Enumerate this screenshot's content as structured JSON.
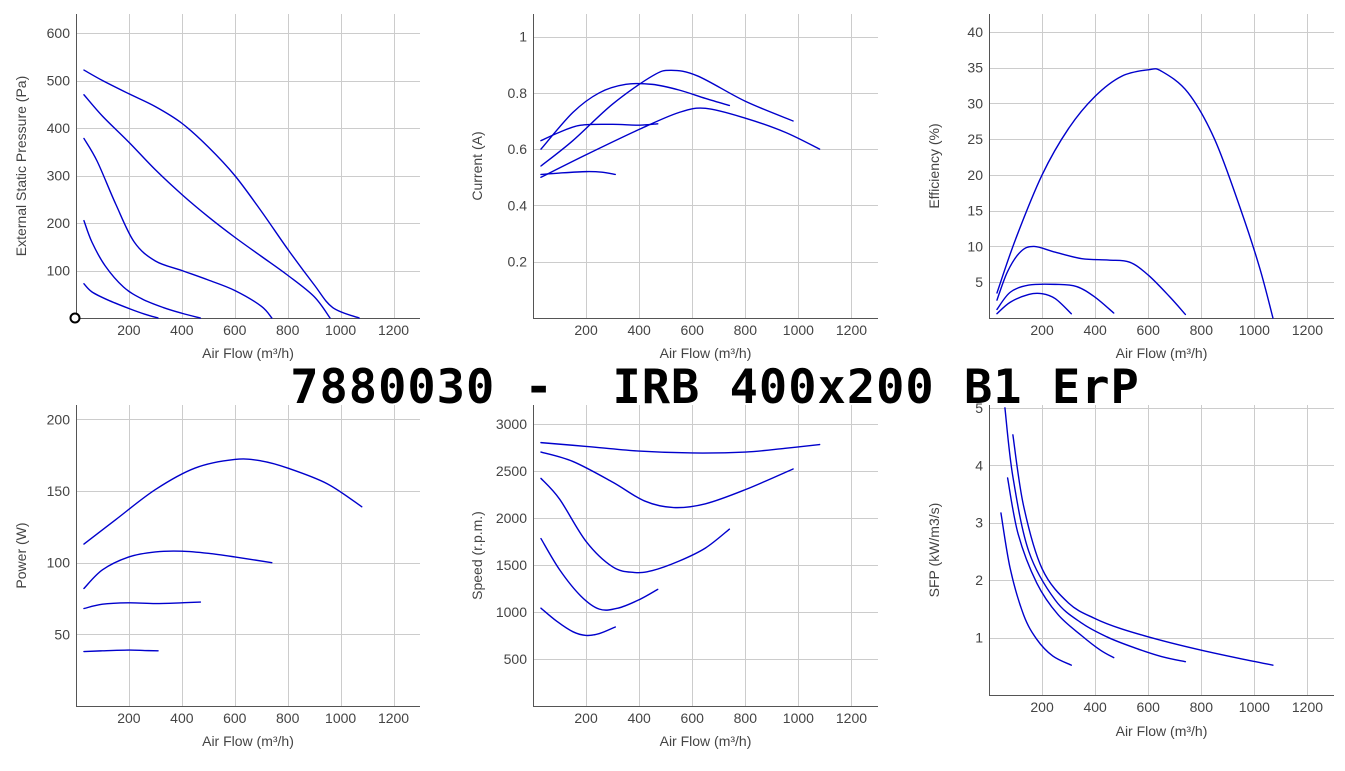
{
  "title": "7880030 -  IRB 400x200 B1 ErP",
  "colors": {
    "curve": "#0000cc",
    "grid": "#cccccc",
    "axis": "#555555",
    "marker": "#000000"
  },
  "chart_data": [
    {
      "id": "pressure",
      "type": "line",
      "xlabel": "Air Flow (m³/h)",
      "ylabel": "External Static Pressure (Pa)",
      "xticks": [
        200,
        400,
        600,
        800,
        1000,
        1200
      ],
      "yticks": [
        100,
        200,
        300,
        400,
        500,
        600
      ],
      "xlim": [
        0,
        1300
      ],
      "ylim": [
        0,
        640
      ],
      "grid": true,
      "marker_point": [
        0,
        0
      ],
      "series": [
        {
          "points": [
            [
              30,
              522
            ],
            [
              100,
              500
            ],
            [
              200,
              472
            ],
            [
              300,
              445
            ],
            [
              400,
              410
            ],
            [
              500,
              360
            ],
            [
              600,
              300
            ],
            [
              700,
              225
            ],
            [
              800,
              145
            ],
            [
              900,
              70
            ],
            [
              970,
              22
            ],
            [
              1070,
              0
            ]
          ]
        },
        {
          "points": [
            [
              30,
              470
            ],
            [
              100,
              425
            ],
            [
              200,
              370
            ],
            [
              300,
              312
            ],
            [
              400,
              260
            ],
            [
              500,
              213
            ],
            [
              600,
              170
            ],
            [
              700,
              130
            ],
            [
              800,
              90
            ],
            [
              900,
              45
            ],
            [
              960,
              0
            ]
          ]
        },
        {
          "points": [
            [
              30,
              378
            ],
            [
              80,
              330
            ],
            [
              150,
              240
            ],
            [
              220,
              160
            ],
            [
              300,
              120
            ],
            [
              400,
              100
            ],
            [
              500,
              80
            ],
            [
              600,
              58
            ],
            [
              700,
              25
            ],
            [
              740,
              0
            ]
          ]
        },
        {
          "points": [
            [
              30,
              205
            ],
            [
              60,
              160
            ],
            [
              110,
              110
            ],
            [
              180,
              65
            ],
            [
              250,
              40
            ],
            [
              330,
              22
            ],
            [
              400,
              10
            ],
            [
              470,
              0
            ]
          ]
        },
        {
          "points": [
            [
              30,
              72
            ],
            [
              60,
              55
            ],
            [
              120,
              38
            ],
            [
              200,
              20
            ],
            [
              260,
              8
            ],
            [
              310,
              0
            ]
          ]
        }
      ]
    },
    {
      "id": "current",
      "type": "line",
      "xlabel": "Air Flow (m³/h)",
      "ylabel": "Current (A)",
      "xticks": [
        200,
        400,
        600,
        800,
        1000,
        1200
      ],
      "yticks": [
        0.2,
        0.4,
        0.6,
        0.8,
        1
      ],
      "xlim": [
        0,
        1300
      ],
      "ylim": [
        0,
        1.08
      ],
      "grid": true,
      "series": [
        {
          "points": [
            [
              30,
              0.5
            ],
            [
              200,
              0.58
            ],
            [
              400,
              0.67
            ],
            [
              550,
              0.73
            ],
            [
              650,
              0.745
            ],
            [
              800,
              0.71
            ],
            [
              950,
              0.66
            ],
            [
              1080,
              0.6
            ]
          ]
        },
        {
          "points": [
            [
              30,
              0.54
            ],
            [
              150,
              0.63
            ],
            [
              300,
              0.76
            ],
            [
              450,
              0.86
            ],
            [
              520,
              0.88
            ],
            [
              620,
              0.86
            ],
            [
              800,
              0.77
            ],
            [
              980,
              0.7
            ]
          ]
        },
        {
          "points": [
            [
              30,
              0.6
            ],
            [
              150,
              0.73
            ],
            [
              250,
              0.8
            ],
            [
              350,
              0.83
            ],
            [
              450,
              0.83
            ],
            [
              550,
              0.81
            ],
            [
              650,
              0.78
            ],
            [
              740,
              0.755
            ]
          ]
        },
        {
          "points": [
            [
              30,
              0.63
            ],
            [
              100,
              0.66
            ],
            [
              180,
              0.685
            ],
            [
              300,
              0.688
            ],
            [
              400,
              0.685
            ],
            [
              470,
              0.69
            ]
          ]
        },
        {
          "points": [
            [
              30,
              0.51
            ],
            [
              100,
              0.515
            ],
            [
              200,
              0.52
            ],
            [
              260,
              0.518
            ],
            [
              310,
              0.51
            ]
          ]
        }
      ]
    },
    {
      "id": "efficiency",
      "type": "line",
      "xlabel": "Air Flow (m³/h)",
      "ylabel": "Efficiency (%)",
      "xticks": [
        200,
        400,
        600,
        800,
        1000,
        1200
      ],
      "yticks": [
        5,
        10,
        15,
        20,
        25,
        30,
        35,
        40
      ],
      "xlim": [
        0,
        1300
      ],
      "ylim": [
        0,
        42.5
      ],
      "grid": true,
      "series": [
        {
          "points": [
            [
              30,
              3.5
            ],
            [
              100,
              11
            ],
            [
              200,
              20
            ],
            [
              300,
              26.5
            ],
            [
              400,
              31
            ],
            [
              500,
              33.8
            ],
            [
              600,
              34.7
            ],
            [
              650,
              34.5
            ],
            [
              750,
              31.5
            ],
            [
              850,
              25
            ],
            [
              950,
              15
            ],
            [
              1020,
              7
            ],
            [
              1070,
              0
            ]
          ]
        },
        {
          "points": [
            [
              30,
              2.5
            ],
            [
              70,
              6.5
            ],
            [
              120,
              9.3
            ],
            [
              170,
              10
            ],
            [
              250,
              9.2
            ],
            [
              350,
              8.3
            ],
            [
              450,
              8.1
            ],
            [
              530,
              7.8
            ],
            [
              600,
              6
            ],
            [
              680,
              3
            ],
            [
              740,
              0.5
            ]
          ]
        },
        {
          "points": [
            [
              30,
              1.2
            ],
            [
              80,
              3.6
            ],
            [
              150,
              4.6
            ],
            [
              250,
              4.7
            ],
            [
              330,
              4.4
            ],
            [
              400,
              2.9
            ],
            [
              470,
              0.7
            ]
          ]
        },
        {
          "points": [
            [
              30,
              0.6
            ],
            [
              80,
              2.2
            ],
            [
              150,
              3.3
            ],
            [
              200,
              3.4
            ],
            [
              250,
              2.7
            ],
            [
              310,
              0.6
            ]
          ]
        }
      ]
    },
    {
      "id": "power",
      "type": "line",
      "xlabel": "Air Flow (m³/h)",
      "ylabel": "Power (W)",
      "xticks": [
        200,
        400,
        600,
        800,
        1000,
        1200
      ],
      "yticks": [
        50,
        100,
        150,
        200
      ],
      "xlim": [
        0,
        1300
      ],
      "ylim": [
        0,
        210
      ],
      "grid": true,
      "series": [
        {
          "points": [
            [
              30,
              113
            ],
            [
              150,
              130
            ],
            [
              300,
              151
            ],
            [
              450,
              166
            ],
            [
              600,
              172
            ],
            [
              700,
              171
            ],
            [
              800,
              166
            ],
            [
              950,
              155
            ],
            [
              1080,
              139
            ]
          ]
        },
        {
          "points": [
            [
              30,
              82
            ],
            [
              100,
              95
            ],
            [
              200,
              104
            ],
            [
              300,
              107.5
            ],
            [
              400,
              108
            ],
            [
              500,
              106.5
            ],
            [
              600,
              104
            ],
            [
              740,
              100
            ]
          ]
        },
        {
          "points": [
            [
              30,
              68
            ],
            [
              100,
              71
            ],
            [
              200,
              72
            ],
            [
              300,
              71.5
            ],
            [
              400,
              72
            ],
            [
              470,
              72.5
            ]
          ]
        },
        {
          "points": [
            [
              30,
              38
            ],
            [
              100,
              38.5
            ],
            [
              200,
              39
            ],
            [
              260,
              38.7
            ],
            [
              310,
              38.5
            ]
          ]
        }
      ]
    },
    {
      "id": "speed",
      "type": "line",
      "xlabel": "Air Flow (m³/h)",
      "ylabel": "Speed (r.p.m.)",
      "xticks": [
        200,
        400,
        600,
        800,
        1000,
        1200
      ],
      "yticks": [
        500,
        1000,
        1500,
        2000,
        2500,
        3000
      ],
      "xlim": [
        0,
        1300
      ],
      "ylim": [
        0,
        3200
      ],
      "grid": true,
      "series": [
        {
          "points": [
            [
              30,
              2800
            ],
            [
              200,
              2760
            ],
            [
              400,
              2710
            ],
            [
              600,
              2690
            ],
            [
              800,
              2700
            ],
            [
              950,
              2740
            ],
            [
              1080,
              2780
            ]
          ]
        },
        {
          "points": [
            [
              30,
              2700
            ],
            [
              150,
              2600
            ],
            [
              300,
              2380
            ],
            [
              420,
              2180
            ],
            [
              530,
              2110
            ],
            [
              650,
              2150
            ],
            [
              800,
              2300
            ],
            [
              980,
              2520
            ]
          ]
        },
        {
          "points": [
            [
              30,
              2420
            ],
            [
              100,
              2200
            ],
            [
              200,
              1750
            ],
            [
              300,
              1480
            ],
            [
              380,
              1420
            ],
            [
              450,
              1440
            ],
            [
              550,
              1540
            ],
            [
              650,
              1680
            ],
            [
              740,
              1880
            ]
          ]
        },
        {
          "points": [
            [
              30,
              1780
            ],
            [
              100,
              1450
            ],
            [
              180,
              1170
            ],
            [
              250,
              1030
            ],
            [
              320,
              1040
            ],
            [
              400,
              1130
            ],
            [
              470,
              1240
            ]
          ]
        },
        {
          "points": [
            [
              30,
              1040
            ],
            [
              90,
              900
            ],
            [
              150,
              790
            ],
            [
              200,
              750
            ],
            [
              250,
              770
            ],
            [
              310,
              840
            ]
          ]
        }
      ]
    },
    {
      "id": "sfp",
      "type": "line",
      "xlabel": "Air Flow (m³/h)",
      "ylabel": "SFP (kW/m3/s)",
      "xticks": [
        200,
        400,
        600,
        800,
        1000,
        1200
      ],
      "yticks": [
        1,
        2,
        3,
        4,
        5
      ],
      "xlim": [
        0,
        1300
      ],
      "ylim": [
        0,
        5.05
      ],
      "grid": true,
      "series": [
        {
          "points": [
            [
              90,
              4.53
            ],
            [
              130,
              3.3
            ],
            [
              200,
              2.2
            ],
            [
              300,
              1.6
            ],
            [
              400,
              1.33
            ],
            [
              500,
              1.15
            ],
            [
              650,
              0.95
            ],
            [
              800,
              0.78
            ],
            [
              950,
              0.63
            ],
            [
              1070,
              0.52
            ]
          ]
        },
        {
          "points": [
            [
              60,
              5.0
            ],
            [
              90,
              3.8
            ],
            [
              150,
              2.5
            ],
            [
              250,
              1.65
            ],
            [
              350,
              1.25
            ],
            [
              450,
              1.0
            ],
            [
              550,
              0.82
            ],
            [
              650,
              0.67
            ],
            [
              740,
              0.58
            ]
          ]
        },
        {
          "points": [
            [
              70,
              3.78
            ],
            [
              110,
              2.8
            ],
            [
              180,
              1.95
            ],
            [
              260,
              1.4
            ],
            [
              350,
              1.03
            ],
            [
              420,
              0.78
            ],
            [
              470,
              0.65
            ]
          ]
        },
        {
          "points": [
            [
              45,
              3.17
            ],
            [
              80,
              2.2
            ],
            [
              130,
              1.4
            ],
            [
              180,
              0.97
            ],
            [
              240,
              0.68
            ],
            [
              310,
              0.52
            ]
          ]
        }
      ]
    }
  ]
}
